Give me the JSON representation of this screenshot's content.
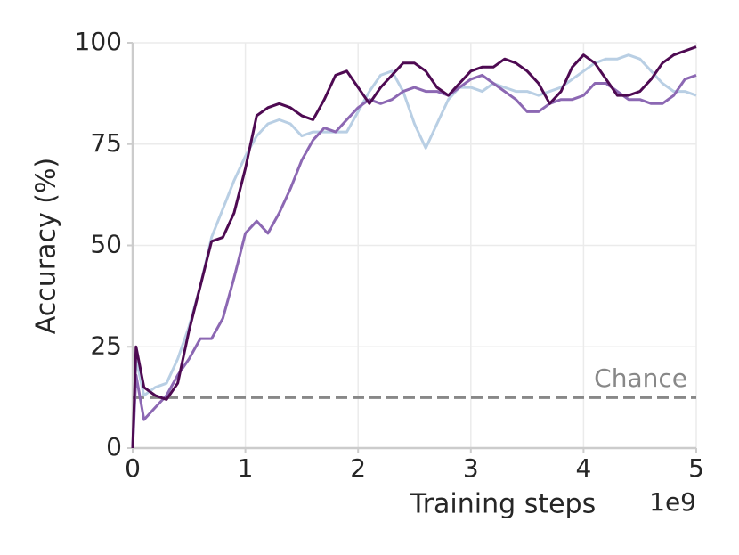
{
  "chart_data": {
    "type": "line",
    "x_label": "Training steps",
    "y_label": "Accuracy (%)",
    "x_offset_label": "1e9",
    "x": [
      0,
      0.03,
      0.1,
      0.2,
      0.3,
      0.4,
      0.5,
      0.6,
      0.7,
      0.8,
      0.9,
      1.0,
      1.1,
      1.2,
      1.3,
      1.4,
      1.5,
      1.6,
      1.7,
      1.8,
      1.9,
      2.0,
      2.1,
      2.2,
      2.3,
      2.4,
      2.5,
      2.6,
      2.7,
      2.8,
      2.9,
      3.0,
      3.1,
      3.2,
      3.3,
      3.4,
      3.5,
      3.6,
      3.7,
      3.8,
      3.9,
      4.0,
      4.1,
      4.2,
      4.3,
      4.4,
      4.5,
      4.6,
      4.7,
      4.8,
      4.9,
      5.0
    ],
    "series": [
      {
        "color": "#b9cfe4",
        "values": [
          0,
          22,
          13,
          15,
          16,
          22,
          30,
          40,
          52,
          59,
          66,
          72,
          77,
          80,
          81,
          80,
          77,
          78,
          78,
          78,
          78,
          83,
          88,
          92,
          93,
          88,
          80,
          74,
          80,
          86,
          89,
          89,
          88,
          90,
          89,
          88,
          88,
          87,
          88,
          89,
          91,
          93,
          95,
          96,
          96,
          97,
          96,
          93,
          90,
          88,
          88,
          87
        ]
      },
      {
        "color": "#8c68b3",
        "values": [
          0,
          18,
          7,
          10,
          13,
          18,
          22,
          27,
          27,
          32,
          42,
          53,
          56,
          53,
          58,
          64,
          71,
          76,
          79,
          78,
          81,
          84,
          86,
          85,
          86,
          88,
          89,
          88,
          88,
          87,
          89,
          91,
          92,
          90,
          88,
          86,
          83,
          83,
          85,
          86,
          86,
          87,
          90,
          90,
          88,
          86,
          86,
          85,
          85,
          87,
          91,
          92
        ]
      },
      {
        "color": "#4e0a52",
        "values": [
          0,
          25,
          15,
          13,
          12,
          16,
          29,
          40,
          51,
          52,
          58,
          69,
          82,
          84,
          85,
          84,
          82,
          81,
          86,
          92,
          93,
          89,
          85,
          89,
          92,
          95,
          95,
          93,
          89,
          87,
          90,
          93,
          94,
          94,
          96,
          95,
          93,
          90,
          85,
          88,
          94,
          97,
          95,
          91,
          87,
          87,
          88,
          91,
          95,
          97,
          98,
          99
        ]
      }
    ],
    "reference_lines": [
      {
        "value": 12.5,
        "label": "Chance",
        "color": "#888888",
        "style": "dashed"
      }
    ],
    "xlim": [
      0,
      5
    ],
    "xticks": [
      0,
      1,
      2,
      3,
      4,
      5
    ],
    "ylim": [
      0,
      100
    ],
    "yticks": [
      0,
      25,
      50,
      75,
      100
    ],
    "grid": true
  }
}
